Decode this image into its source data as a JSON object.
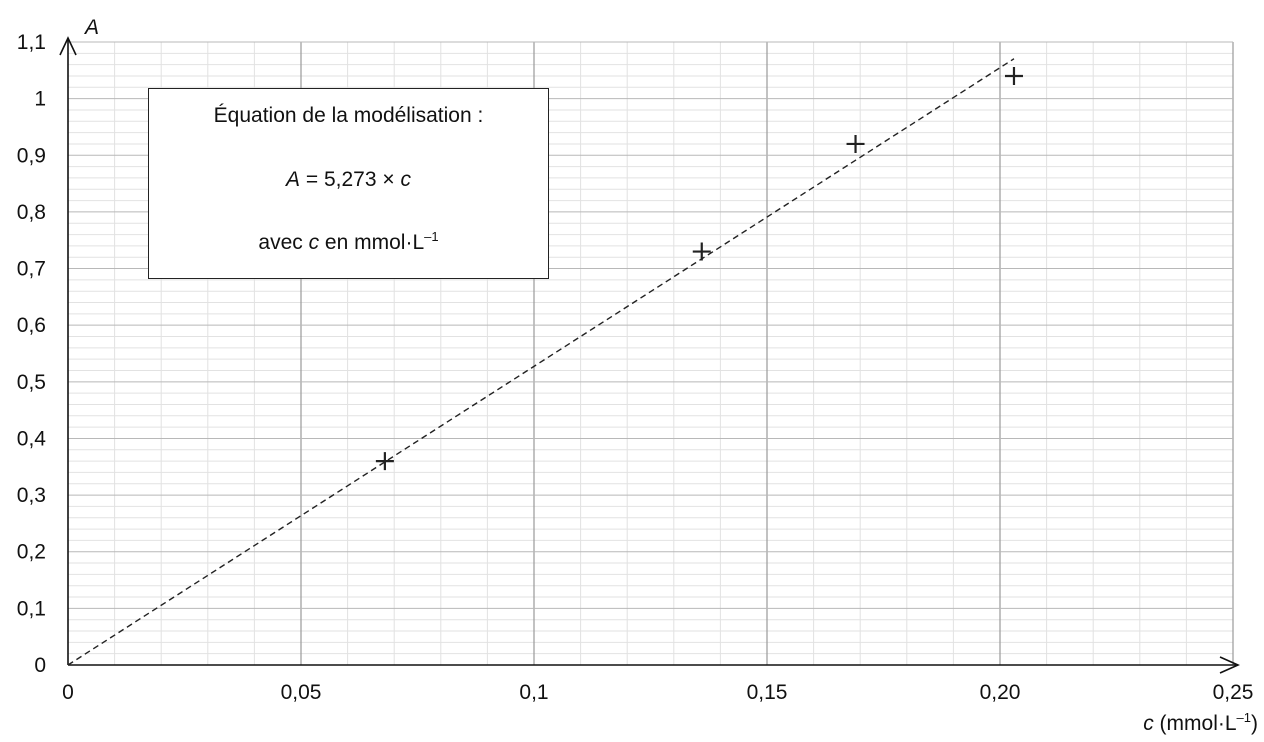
{
  "chart_data": {
    "type": "scatter",
    "title": "",
    "xlabel_var": "c",
    "xlabel_unit": "(mmol·L",
    "xlabel_exp": "–1",
    "xlabel_close": ")",
    "ylabel": "A",
    "xlim": [
      0,
      0.25
    ],
    "ylim": [
      0,
      1.1
    ],
    "grid": true,
    "x_tick_labels": [
      "0",
      "0,05",
      "0,1",
      "0,15",
      "0,20",
      "0,25"
    ],
    "y_tick_labels": [
      "0",
      "0,1",
      "0,2",
      "0,3",
      "0,4",
      "0,5",
      "0,6",
      "0,7",
      "0,8",
      "0,9",
      "1",
      "1,1"
    ],
    "series": [
      {
        "marker": "plus",
        "points": [
          {
            "x": 0.068,
            "y": 0.36
          },
          {
            "x": 0.136,
            "y": 0.73
          },
          {
            "x": 0.169,
            "y": 0.92
          },
          {
            "x": 0.203,
            "y": 1.04
          }
        ]
      }
    ],
    "fit_line": {
      "style": "dashed",
      "slope": 5.273,
      "x_range": [
        0,
        0.203
      ]
    }
  },
  "equation_box": {
    "line1": "Équation de la modélisation :",
    "line2_var1": "A",
    "line2_mid": " = 5,273 × ",
    "line2_var2": "c",
    "line3_pre": "avec ",
    "line3_var": "c",
    "line3_post": " en mmol·L",
    "line3_exp": "–1"
  }
}
